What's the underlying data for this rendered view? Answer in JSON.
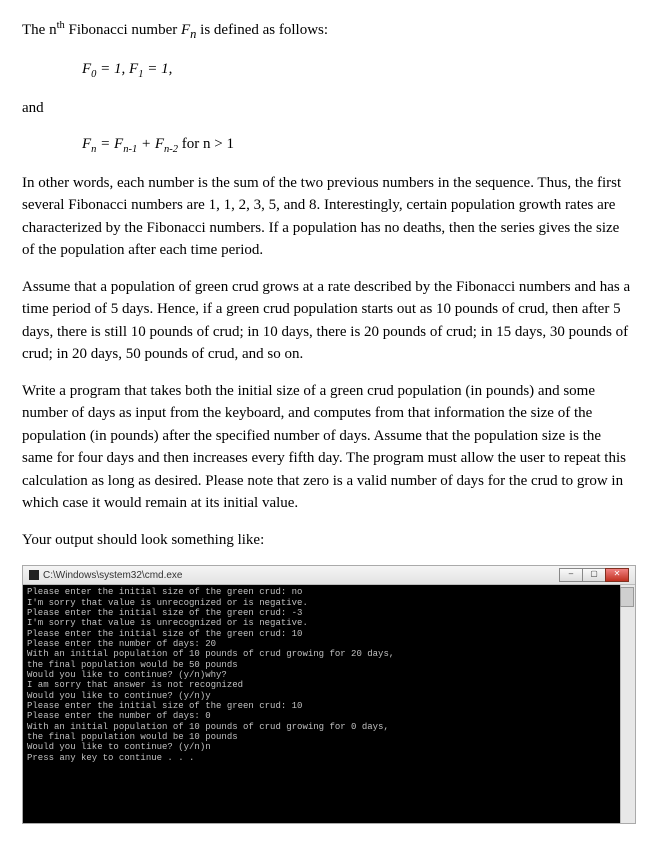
{
  "intro": {
    "line1_pre": "The n",
    "line1_sup": "th",
    "line1_post": " Fibonacci number ",
    "line1_fn": "F",
    "line1_fn_sub": "n",
    "line1_end": " is defined as follows:"
  },
  "formula1": {
    "a": "F",
    "a_sub": "0",
    "eq1": " = 1, ",
    "b": "F",
    "b_sub": "1",
    "eq2": " = 1,"
  },
  "andword": "and",
  "formula2": {
    "a": "F",
    "a_sub": "n",
    "eq": " = ",
    "b": "F",
    "b_sub": "n-1",
    "plus": " + ",
    "c": "F",
    "c_sub": "n-2",
    "tail": " for n > 1"
  },
  "p2": "In other words, each number is the sum of the two previous numbers in the sequence.  Thus, the first several Fibonacci numbers are 1, 1, 2, 3, 5, and 8.  Interestingly, certain population growth rates are characterized by the Fibonacci numbers.  If a population has no deaths, then the series gives the size of the population after each time period.",
  "p3": "Assume that a population of green crud grows at a rate described by the Fibonacci numbers and has a time period of 5 days.  Hence, if a green crud population starts out as 10 pounds of crud, then after 5 days, there is still 10 pounds of crud; in 10 days, there is 20 pounds of crud; in 15 days, 30 pounds of crud; in 20 days, 50 pounds of crud, and so on.",
  "p4": "Write a program that takes both the initial size of a green crud population (in pounds) and some number of days as input from the keyboard, and computes from that information the size of the population (in pounds) after the specified number of days.  Assume that the population size is the same for four days and then increases every fifth day.  The program must allow the user to repeat this calculation as long as desired.  Please note that zero is a valid number of days for the crud to grow in which case it would remain at its initial value.",
  "p5": "Your output should look something like:",
  "terminal": {
    "title": "C:\\Windows\\system32\\cmd.exe",
    "lines": [
      "Please enter the initial size of the green crud: no",
      "I'm sorry that value is unrecognized or is negative.",
      "Please enter the initial size of the green crud: -3",
      "I'm sorry that value is unrecognized or is negative.",
      "Please enter the initial size of the green crud: 10",
      "Please enter the number of days: 20",
      "With an initial population of 10 pounds of crud growing for 20 days,",
      "the final population would be 50 pounds",
      "Would you like to continue? (y/n)why?",
      "I am sorry that answer is not recognized",
      "Would you like to continue? (y/n)y",
      "Please enter the initial size of the green crud: 10",
      "Please enter the number of days: 0",
      "With an initial population of 10 pounds of crud growing for 0 days,",
      "the final population would be 10 pounds",
      "Would you like to continue? (y/n)n",
      "Press any key to continue . . ."
    ]
  }
}
